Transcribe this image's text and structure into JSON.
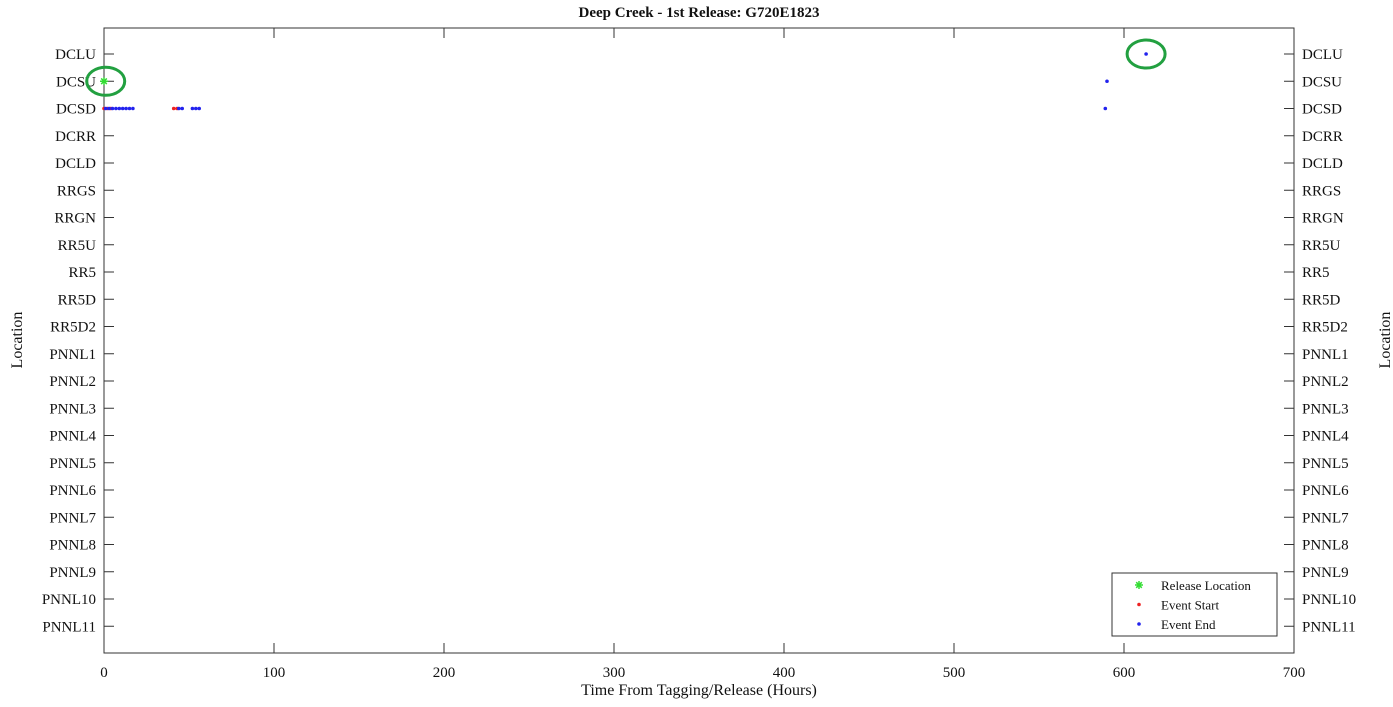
{
  "chart_data": {
    "type": "scatter",
    "title": "Deep Creek - 1st Release: G720E1823",
    "xlabel": "Time From Tagging/Release (Hours)",
    "ylabel": "Location",
    "ylabel_right": "Location",
    "xlim": [
      0,
      700
    ],
    "xticks": [
      0,
      100,
      200,
      300,
      400,
      500,
      600,
      700
    ],
    "categories": [
      "DCLU",
      "DCSU",
      "DCSD",
      "DCRR",
      "DCLD",
      "RRGS",
      "RRGN",
      "RR5U",
      "RR5",
      "RR5D",
      "RR5D2",
      "PNNL1",
      "PNNL2",
      "PNNL3",
      "PNNL4",
      "PNNL5",
      "PNNL6",
      "PNNL7",
      "PNNL8",
      "PNNL9",
      "PNNL10",
      "PNNL11"
    ],
    "grid": false,
    "legend_position": "bottom-right",
    "series": [
      {
        "name": "Release Location",
        "color": "#33dd33",
        "marker": "star",
        "points": [
          {
            "x": 0,
            "y": "DCSU"
          }
        ]
      },
      {
        "name": "Event Start",
        "color": "#ee2222",
        "marker": "dot",
        "points": [
          {
            "x": 0,
            "y": "DCSD"
          },
          {
            "x": 2,
            "y": "DCSD"
          },
          {
            "x": 4,
            "y": "DCSD"
          },
          {
            "x": 41,
            "y": "DCSD"
          },
          {
            "x": 43,
            "y": "DCSD"
          }
        ]
      },
      {
        "name": "Event End",
        "color": "#2222ee",
        "marker": "dot",
        "points": [
          {
            "x": 1,
            "y": "DCSD"
          },
          {
            "x": 3,
            "y": "DCSD"
          },
          {
            "x": 5,
            "y": "DCSD"
          },
          {
            "x": 7,
            "y": "DCSD"
          },
          {
            "x": 9,
            "y": "DCSD"
          },
          {
            "x": 11,
            "y": "DCSD"
          },
          {
            "x": 13,
            "y": "DCSD"
          },
          {
            "x": 15,
            "y": "DCSD"
          },
          {
            "x": 17,
            "y": "DCSD"
          },
          {
            "x": 44,
            "y": "DCSD"
          },
          {
            "x": 46,
            "y": "DCSD"
          },
          {
            "x": 52,
            "y": "DCSD"
          },
          {
            "x": 54,
            "y": "DCSD"
          },
          {
            "x": 56,
            "y": "DCSD"
          },
          {
            "x": 589,
            "y": "DCSD"
          },
          {
            "x": 590,
            "y": "DCSU"
          },
          {
            "x": 613,
            "y": "DCLU"
          }
        ]
      }
    ],
    "annotations": [
      {
        "type": "circle",
        "color": "#22a040",
        "x": 1,
        "y": "DCSU"
      },
      {
        "type": "circle",
        "color": "#22a040",
        "x": 613,
        "y": "DCLU"
      }
    ]
  }
}
